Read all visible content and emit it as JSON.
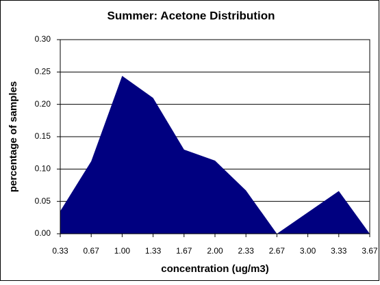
{
  "chart_data": {
    "type": "area",
    "title": "Summer:  Acetone Distribution",
    "x_label": "concentration (ug/m3)",
    "y_label": "percentage of samples",
    "categories": [
      "0.33",
      "0.67",
      "1.00",
      "1.33",
      "1.67",
      "2.00",
      "2.33",
      "2.67",
      "3.00",
      "3.33",
      "3.67"
    ],
    "values": [
      0.035,
      0.112,
      0.244,
      0.21,
      0.13,
      0.113,
      0.067,
      0,
      0.033,
      0.066,
      0
    ],
    "color": "#000080",
    "ylim": [
      0,
      0.3
    ],
    "yticks": [
      {
        "value": 0,
        "label": "0.00"
      },
      {
        "value": 0.05,
        "label": "0.05"
      },
      {
        "value": 0.1,
        "label": "0.10"
      },
      {
        "value": 0.15,
        "label": "0.15"
      },
      {
        "value": 0.2,
        "label": "0.20"
      },
      {
        "value": 0.25,
        "label": "0.25"
      },
      {
        "value": 0.3,
        "label": "0.30"
      }
    ],
    "grid": true
  }
}
